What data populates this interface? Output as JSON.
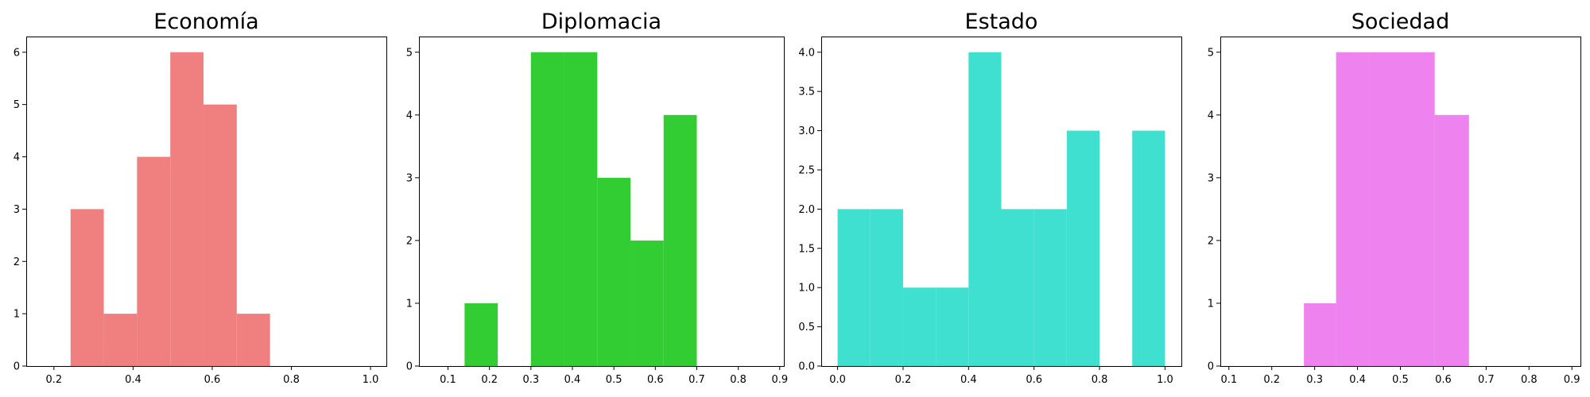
{
  "chart_data": [
    {
      "type": "bar",
      "subtype": "histogram",
      "title": "Economía",
      "color": "#f08080",
      "bins": [
        {
          "x0": 0.242,
          "x1": 0.326,
          "count": 3
        },
        {
          "x0": 0.326,
          "x1": 0.41,
          "count": 1
        },
        {
          "x0": 0.41,
          "x1": 0.494,
          "count": 4
        },
        {
          "x0": 0.494,
          "x1": 0.578,
          "count": 6
        },
        {
          "x0": 0.578,
          "x1": 0.662,
          "count": 5
        },
        {
          "x0": 0.662,
          "x1": 0.746,
          "count": 1
        }
      ],
      "xlim": [
        0.13,
        1.04
      ],
      "ylim": [
        0,
        6.3
      ],
      "xticks": [
        0.2,
        0.4,
        0.6,
        0.8,
        1.0
      ],
      "xtick_labels": [
        "0.2",
        "0.4",
        "0.6",
        "0.8",
        "1.0"
      ],
      "yticks": [
        0,
        1,
        2,
        3,
        4,
        5,
        6
      ],
      "ytick_labels": [
        "0",
        "1",
        "2",
        "3",
        "4",
        "5",
        "6"
      ],
      "grid": false
    },
    {
      "type": "bar",
      "subtype": "histogram",
      "title": "Diplomacia",
      "color": "#32cd32",
      "bins": [
        {
          "x0": 0.14,
          "x1": 0.22,
          "count": 1
        },
        {
          "x0": 0.22,
          "x1": 0.3,
          "count": 0
        },
        {
          "x0": 0.3,
          "x1": 0.38,
          "count": 5
        },
        {
          "x0": 0.38,
          "x1": 0.46,
          "count": 5
        },
        {
          "x0": 0.46,
          "x1": 0.54,
          "count": 3
        },
        {
          "x0": 0.54,
          "x1": 0.62,
          "count": 2
        },
        {
          "x0": 0.62,
          "x1": 0.7,
          "count": 4
        }
      ],
      "xlim": [
        0.03,
        0.91
      ],
      "ylim": [
        0,
        5.25
      ],
      "xticks": [
        0.1,
        0.2,
        0.3,
        0.4,
        0.5,
        0.6,
        0.7,
        0.8,
        0.9
      ],
      "xtick_labels": [
        "0.1",
        "0.2",
        "0.3",
        "0.4",
        "0.5",
        "0.6",
        "0.7",
        "0.8",
        "0.9"
      ],
      "yticks": [
        0,
        1,
        2,
        3,
        4,
        5
      ],
      "ytick_labels": [
        "0",
        "1",
        "2",
        "3",
        "4",
        "5"
      ],
      "grid": false
    },
    {
      "type": "bar",
      "subtype": "histogram",
      "title": "Estado",
      "color": "#40e0d0",
      "bins": [
        {
          "x0": 0.0,
          "x1": 0.1,
          "count": 2
        },
        {
          "x0": 0.1,
          "x1": 0.2,
          "count": 2
        },
        {
          "x0": 0.2,
          "x1": 0.3,
          "count": 1
        },
        {
          "x0": 0.3,
          "x1": 0.4,
          "count": 1
        },
        {
          "x0": 0.4,
          "x1": 0.5,
          "count": 4
        },
        {
          "x0": 0.5,
          "x1": 0.6,
          "count": 2
        },
        {
          "x0": 0.6,
          "x1": 0.7,
          "count": 2
        },
        {
          "x0": 0.7,
          "x1": 0.8,
          "count": 3
        },
        {
          "x0": 0.8,
          "x1": 0.9,
          "count": 0
        },
        {
          "x0": 0.9,
          "x1": 1.0,
          "count": 3
        }
      ],
      "xlim": [
        -0.05,
        1.05
      ],
      "ylim": [
        0,
        4.2
      ],
      "xticks": [
        0.0,
        0.2,
        0.4,
        0.6,
        0.8,
        1.0
      ],
      "xtick_labels": [
        "0.0",
        "0.2",
        "0.4",
        "0.6",
        "0.8",
        "1.0"
      ],
      "yticks": [
        0,
        0.5,
        1,
        1.5,
        2,
        2.5,
        3,
        3.5,
        4
      ],
      "ytick_labels": [
        "0.0",
        "0.5",
        "1.0",
        "1.5",
        "2.0",
        "2.5",
        "3.0",
        "3.5",
        "4.0"
      ],
      "grid": false
    },
    {
      "type": "bar",
      "subtype": "histogram",
      "title": "Sociedad",
      "color": "#ee82ee",
      "bins": [
        {
          "x0": 0.275,
          "x1": 0.35,
          "count": 1
        },
        {
          "x0": 0.35,
          "x1": 0.425,
          "count": 5
        },
        {
          "x0": 0.425,
          "x1": 0.5,
          "count": 5
        },
        {
          "x0": 0.5,
          "x1": 0.58,
          "count": 5
        },
        {
          "x0": 0.58,
          "x1": 0.66,
          "count": 4
        }
      ],
      "xlim": [
        0.08,
        0.92
      ],
      "ylim": [
        0,
        5.25
      ],
      "xticks": [
        0.1,
        0.2,
        0.3,
        0.4,
        0.5,
        0.6,
        0.7,
        0.8,
        0.9
      ],
      "xtick_labels": [
        "0.1",
        "0.2",
        "0.3",
        "0.4",
        "0.5",
        "0.6",
        "0.7",
        "0.8",
        "0.9"
      ],
      "yticks": [
        0,
        1,
        2,
        3,
        4,
        5
      ],
      "ytick_labels": [
        "0",
        "1",
        "2",
        "3",
        "4",
        "5"
      ],
      "grid": false
    }
  ]
}
